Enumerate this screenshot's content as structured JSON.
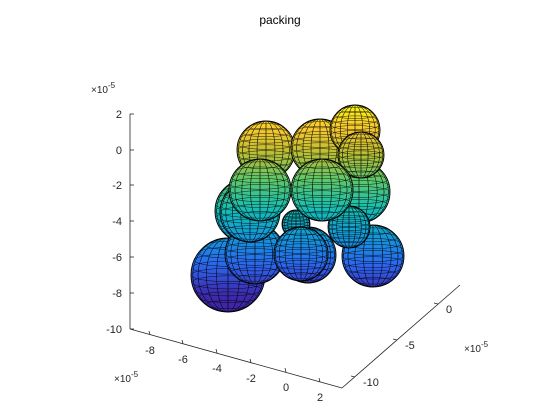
{
  "chart_data": {
    "type": "scatter3d",
    "title": "packing",
    "axes": {
      "x": {
        "ticks": [
          "-8",
          "-6",
          "-4",
          "-2",
          "0",
          "2"
        ],
        "multiplier": "×10",
        "exponent": "-5"
      },
      "y": {
        "ticks": [
          "-10",
          "-5",
          "0"
        ],
        "multiplier": "×10",
        "exponent": "-5"
      },
      "z": {
        "ticks": [
          "2",
          "0",
          "-2",
          "-4",
          "-6",
          "-8",
          "-10"
        ],
        "multiplier": "×10",
        "exponent": "-5"
      }
    },
    "colormap": "parula",
    "grid": false,
    "colors": {
      "axis": "#262626",
      "mesh": "#000000",
      "parula_low": "#3e26a8",
      "parula_high": "#f9fb0e"
    }
  }
}
